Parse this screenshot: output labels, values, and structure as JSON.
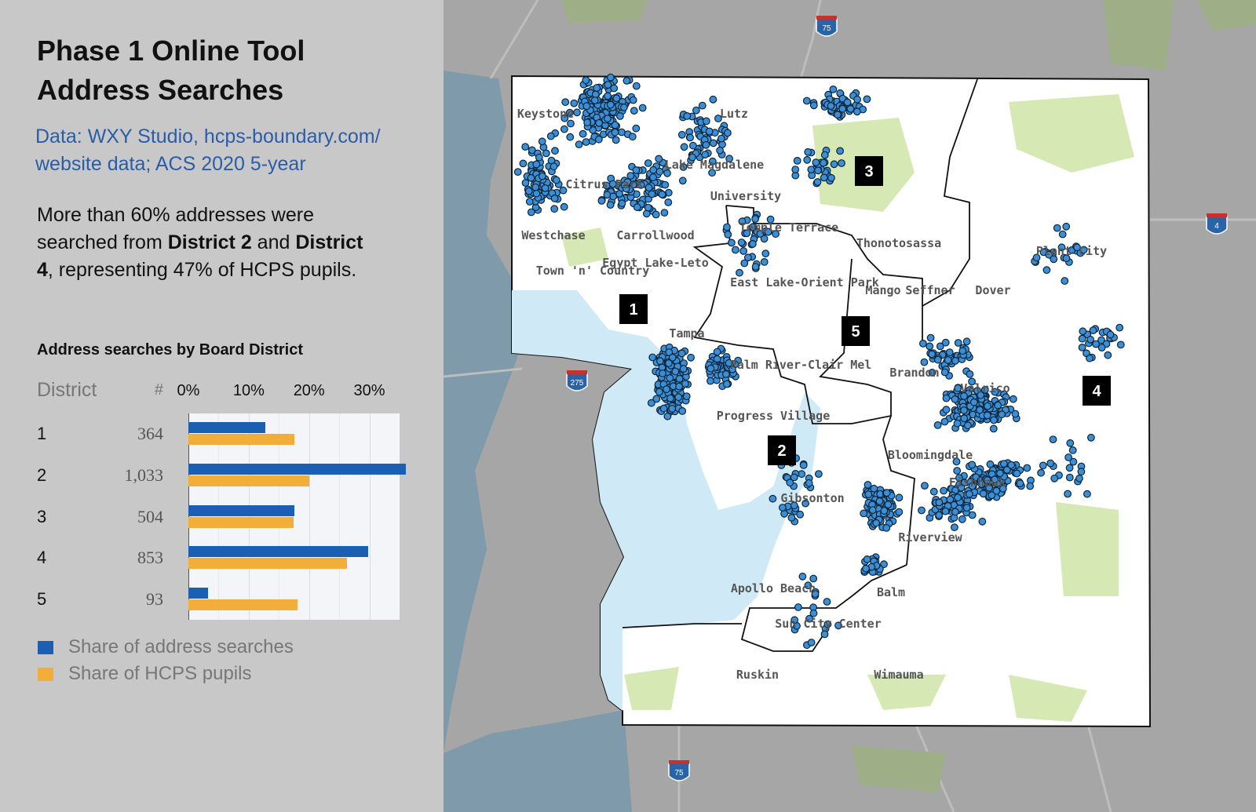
{
  "panel": {
    "title_line1": "Phase 1 Online Tool",
    "title_line2": "Address Searches",
    "source_line1": "Data: WXY Studio, hcps-boundary.com/",
    "source_line2": "website data; ACS 2020 5-year",
    "desc_part1": "More than 60% addresses were searched from ",
    "desc_bold1": "District 2",
    "desc_part2": " and ",
    "desc_bold2": "District 4",
    "desc_part3": ", representing 47% of HCPS pupils."
  },
  "chart_data": {
    "type": "bar",
    "title": "Address searches by Board District",
    "column_headers": {
      "district": "District",
      "count": "#"
    },
    "categories": [
      "1",
      "2",
      "3",
      "4",
      "5"
    ],
    "counts": [
      "364",
      "1,033",
      "504",
      "853",
      "93"
    ],
    "tick_labels": [
      "0%",
      "10%",
      "20%",
      "30%"
    ],
    "xlim": [
      0,
      35
    ],
    "grid": true,
    "series": [
      {
        "name": "Share of address searches",
        "color": "#1a5fb4",
        "values": [
          12.7,
          36.1,
          17.6,
          29.8,
          3.3
        ]
      },
      {
        "name": "Share of HCPS pupils",
        "color": "#f3ae3a",
        "values": [
          17.6,
          20.1,
          17.4,
          26.3,
          18.1
        ]
      }
    ],
    "legend_position": "bottom-left"
  },
  "map": {
    "district_labels": [
      "1",
      "2",
      "3",
      "4",
      "5"
    ],
    "place_names": [
      "Keystone",
      "Citrus Park",
      "Westchase",
      "Town 'n' Country",
      "Carrollwood",
      "Egypt Lake-Leto",
      "Lutz",
      "Lake Magdalene",
      "University",
      "Temple Terrace",
      "Thonotosassa",
      "East Lake-Orient Park",
      "Mango",
      "Seffner",
      "Dover",
      "Plant City",
      "Palm River-Clair Mel",
      "Brandon",
      "Valrico",
      "Progress Village",
      "Bloomingdale",
      "Fishhawk",
      "Gibsonton",
      "Riverview",
      "Apollo Beach",
      "Balm",
      "Sun City Center",
      "Ruskin",
      "Wimauma",
      "Tampa"
    ],
    "highway_shields": [
      "75",
      "275",
      "75",
      "4"
    ],
    "colors": {
      "land": "#ffffff",
      "water": "#cfe9f6",
      "parks": "#d6e8b4",
      "outside": "#a6a6a6",
      "point": "#3a8fd6",
      "point_edge": "#0d2438"
    }
  }
}
